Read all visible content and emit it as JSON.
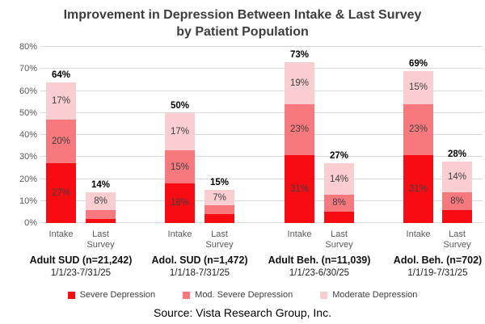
{
  "title": {
    "line1": "Improvement in Depression Between Intake & Last Survey",
    "line2": "by Patient Population"
  },
  "source": "Source:  Vista Research Group, Inc.",
  "colors": {
    "severe": "#f90b13",
    "mod_severe": "#f8797d",
    "moderate": "#facdd0",
    "gridline": "#d9d9d9",
    "axis_text": "#595959",
    "segment_label_text": "#3f3f3f",
    "total_label_text": "#000000"
  },
  "legend": [
    {
      "series": "severe",
      "label": "Severe Depression"
    },
    {
      "series": "mod_severe",
      "label": "Mod. Severe Depression"
    },
    {
      "series": "moderate",
      "label": "Moderate Depression"
    }
  ],
  "chart_data": {
    "type": "bar",
    "stacked": true,
    "title": "Improvement in Depression Between Intake & Last Survey by Patient Population",
    "xlabel": "",
    "ylabel": "",
    "ylim": [
      0,
      80
    ],
    "grid": true,
    "legend_position": "bottom",
    "yticks": [
      {
        "value": 0,
        "label": "0%"
      },
      {
        "value": 10,
        "label": "10%"
      },
      {
        "value": 20,
        "label": "20%"
      },
      {
        "value": 30,
        "label": "30%"
      },
      {
        "value": 40,
        "label": "40%"
      },
      {
        "value": 50,
        "label": "50%"
      },
      {
        "value": 60,
        "label": "60%"
      },
      {
        "value": 70,
        "label": "70%"
      },
      {
        "value": 80,
        "label": "80%"
      }
    ],
    "series_order": [
      "severe",
      "mod_severe",
      "moderate"
    ],
    "series_names": [
      "Severe Depression",
      "Mod. Severe Depression",
      "Moderate Depression"
    ],
    "groups": [
      {
        "name": "Adult SUD (n=21,242)",
        "date_range": "1/1/23-7/31/25",
        "bars": [
          {
            "tick": "Intake",
            "total": 64,
            "total_label": "64%",
            "segments": [
              {
                "series": "severe",
                "value": 27,
                "label": "27%"
              },
              {
                "series": "mod_severe",
                "value": 20,
                "label": "20%"
              },
              {
                "series": "moderate",
                "value": 17,
                "label": "17%"
              }
            ]
          },
          {
            "tick": "Last Survey",
            "total": 14,
            "total_label": "14%",
            "segments": [
              {
                "series": "severe",
                "value": 2,
                "label": ""
              },
              {
                "series": "mod_severe",
                "value": 4,
                "label": ""
              },
              {
                "series": "moderate",
                "value": 8,
                "label": "8%"
              }
            ]
          }
        ]
      },
      {
        "name": "Adol. SUD (n=1,472)",
        "date_range": "1/1/18-7/31/25",
        "bars": [
          {
            "tick": "Intake",
            "total": 50,
            "total_label": "50%",
            "segments": [
              {
                "series": "severe",
                "value": 18,
                "label": "18%"
              },
              {
                "series": "mod_severe",
                "value": 15,
                "label": "15%"
              },
              {
                "series": "moderate",
                "value": 17,
                "label": "17%"
              }
            ]
          },
          {
            "tick": "Last Survey",
            "total": 15,
            "total_label": "15%",
            "segments": [
              {
                "series": "severe",
                "value": 4,
                "label": ""
              },
              {
                "series": "mod_severe",
                "value": 4,
                "label": ""
              },
              {
                "series": "moderate",
                "value": 7,
                "label": "7%"
              }
            ]
          }
        ]
      },
      {
        "name": "Adult Beh. (n=11,039)",
        "date_range": "1/1/23-6/30/25",
        "bars": [
          {
            "tick": "Intake",
            "total": 73,
            "total_label": "73%",
            "segments": [
              {
                "series": "severe",
                "value": 31,
                "label": "31%"
              },
              {
                "series": "mod_severe",
                "value": 23,
                "label": "23%"
              },
              {
                "series": "moderate",
                "value": 19,
                "label": "19%"
              }
            ]
          },
          {
            "tick": "Last Survey",
            "total": 27,
            "total_label": "27%",
            "segments": [
              {
                "series": "severe",
                "value": 5,
                "label": ""
              },
              {
                "series": "mod_severe",
                "value": 8,
                "label": "8%"
              },
              {
                "series": "moderate",
                "value": 14,
                "label": "14%"
              }
            ]
          }
        ]
      },
      {
        "name": "Adol. Beh. (n=702)",
        "date_range": "1/1/19-7/31/25",
        "bars": [
          {
            "tick": "Intake",
            "total": 69,
            "total_label": "69%",
            "segments": [
              {
                "series": "severe",
                "value": 31,
                "label": "31%"
              },
              {
                "series": "mod_severe",
                "value": 23,
                "label": "23%"
              },
              {
                "series": "moderate",
                "value": 15,
                "label": "15%"
              }
            ]
          },
          {
            "tick": "Last Survey",
            "total": 28,
            "total_label": "28%",
            "segments": [
              {
                "series": "severe",
                "value": 6,
                "label": ""
              },
              {
                "series": "mod_severe",
                "value": 8,
                "label": "8%"
              },
              {
                "series": "moderate",
                "value": 14,
                "label": "14%"
              }
            ]
          }
        ]
      }
    ]
  }
}
